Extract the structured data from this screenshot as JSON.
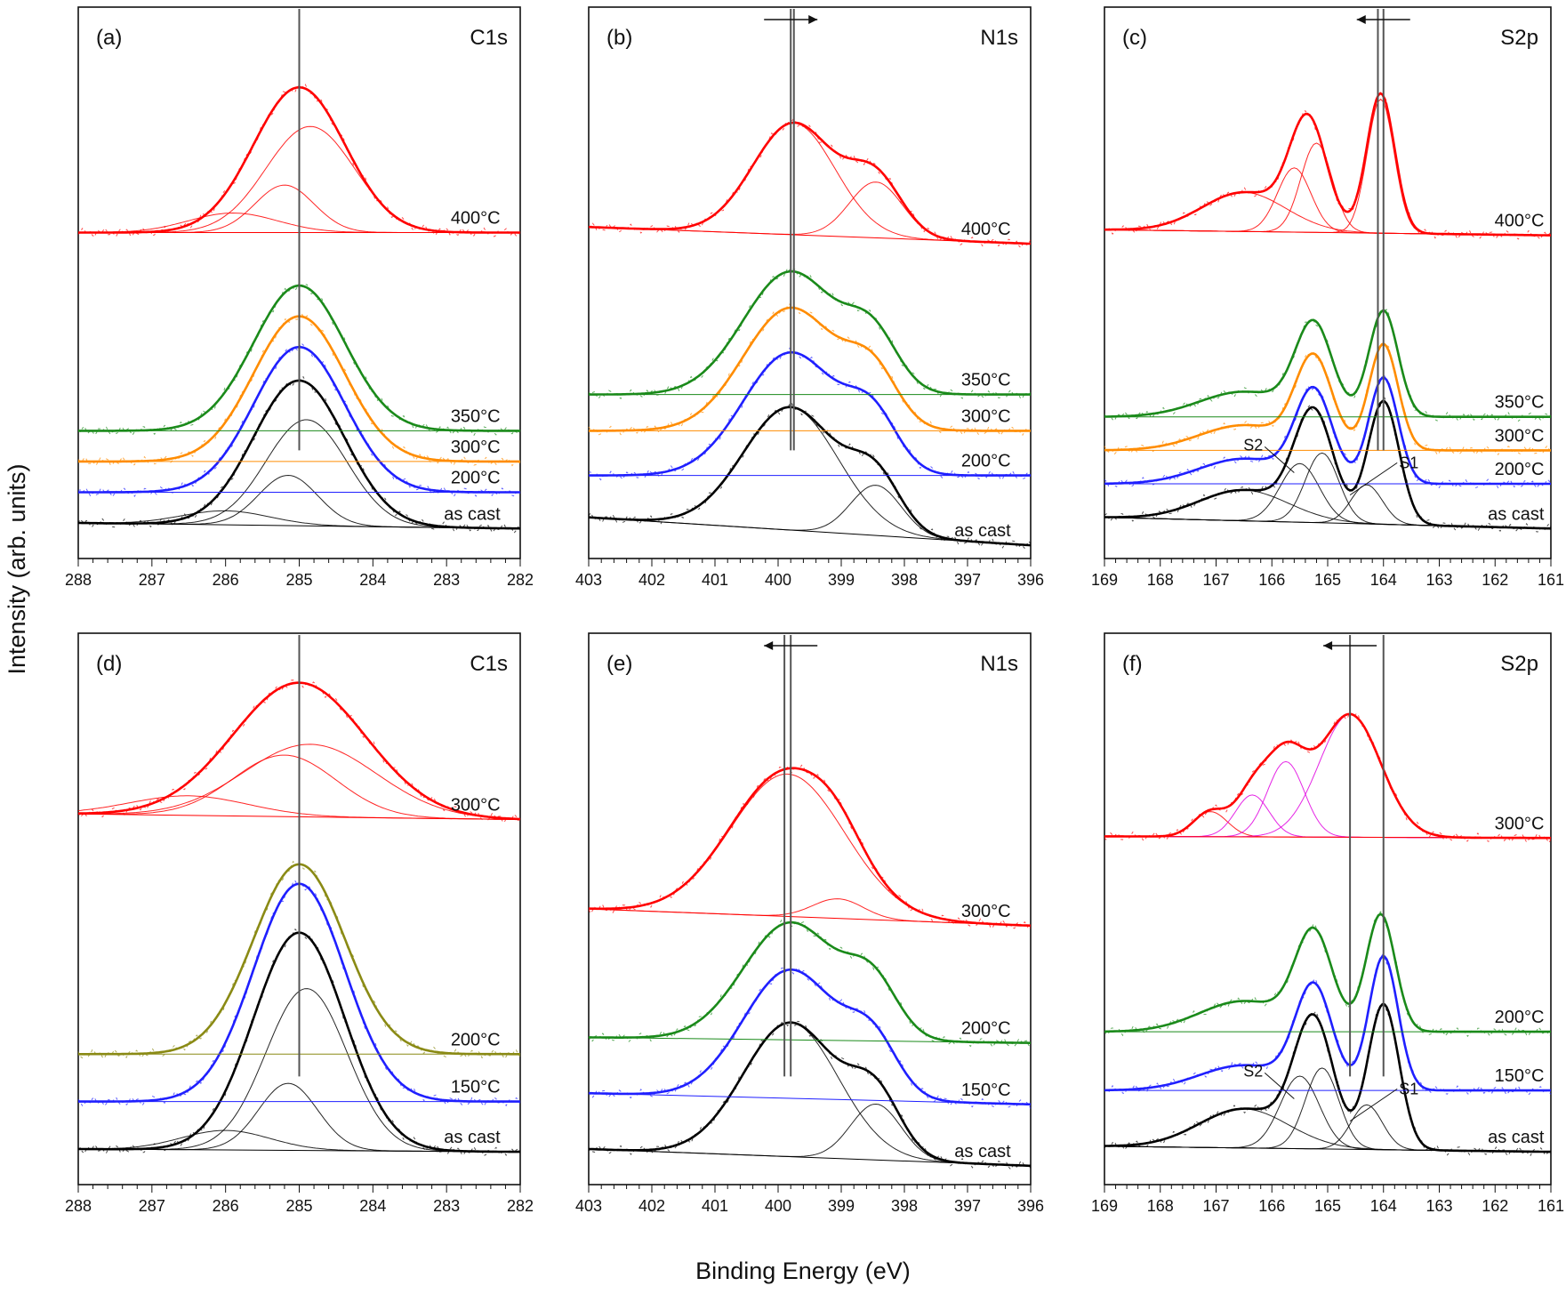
{
  "figure": {
    "ylabel": "Intensity (arb. units)",
    "xlabel": "Binding Energy (eV)"
  },
  "chart_data": [
    {
      "panel": "(a)",
      "element": "C1s",
      "type": "line",
      "xlim": [
        288,
        282
      ],
      "x_ticks": [
        288,
        287,
        286,
        285,
        284,
        283,
        282
      ],
      "ylim": [
        0,
        8.6
      ],
      "reference_line_eV": [
        285.0
      ],
      "series": [
        {
          "name": "as cast",
          "color": "#000000",
          "offset": 0.0,
          "peaks": [
            [
              285.0,
              2.6,
              0.62
            ]
          ],
          "bg": [
            0.0,
            -0.1
          ]
        },
        {
          "name": "200°C",
          "color": "#1f1fff",
          "offset": 0.55,
          "peaks": [
            [
              285.0,
              2.6,
              0.62
            ]
          ],
          "bg": [
            0.0,
            0.0
          ]
        },
        {
          "name": "300°C",
          "color": "#ff8c00",
          "offset": 1.1,
          "peaks": [
            [
              285.0,
              2.6,
              0.62
            ]
          ],
          "bg": [
            0.0,
            0.0
          ]
        },
        {
          "name": "350°C",
          "color": "#1a8a1a",
          "offset": 1.65,
          "peaks": [
            [
              285.0,
              2.6,
              0.62
            ]
          ],
          "bg": [
            0.0,
            0.0
          ]
        },
        {
          "name": "400°C",
          "color": "#ff0000",
          "offset": 5.2,
          "peaks": [
            [
              285.0,
              2.6,
              0.62
            ]
          ],
          "bg": [
            0.0,
            0.0
          ]
        }
      ],
      "components": [
        {
          "of": "as cast",
          "center": 284.9,
          "height": 1.9,
          "width": 0.55
        },
        {
          "of": "as cast",
          "center": 285.15,
          "height": 0.9,
          "width": 0.4
        },
        {
          "of": "as cast",
          "center": 286.0,
          "height": 0.25,
          "width": 0.6
        },
        {
          "of": "400°C",
          "center": 284.85,
          "height": 1.9,
          "width": 0.6
        },
        {
          "of": "400°C",
          "center": 285.2,
          "height": 0.85,
          "width": 0.4
        },
        {
          "of": "400°C",
          "center": 285.9,
          "height": 0.35,
          "width": 0.6
        }
      ],
      "curve_labels": [
        "400°C",
        "350°C",
        "300°C",
        "200°C",
        "as cast"
      ]
    },
    {
      "panel": "(b)",
      "element": "N1s",
      "type": "line",
      "xlim": [
        403,
        396
      ],
      "x_ticks": [
        403,
        402,
        401,
        400,
        399,
        398,
        397,
        396
      ],
      "ylim": [
        0,
        8.6
      ],
      "reference_line_eV": [
        399.8,
        399.75
      ],
      "shift_arrow": "right",
      "series": [
        {
          "name": "as cast",
          "color": "#000000",
          "offset": 0.0,
          "peaks": [
            [
              399.8,
              2.2,
              0.75
            ],
            [
              398.45,
              0.9,
              0.4
            ]
          ],
          "bg": [
            0.1,
            -0.4
          ]
        },
        {
          "name": "200°C",
          "color": "#1f1fff",
          "offset": 0.85,
          "peaks": [
            [
              399.8,
              2.2,
              0.75
            ],
            [
              398.5,
              0.9,
              0.4
            ]
          ],
          "bg": [
            0.0,
            0.0
          ]
        },
        {
          "name": "300°C",
          "color": "#ff8c00",
          "offset": 1.65,
          "peaks": [
            [
              399.8,
              2.2,
              0.75
            ],
            [
              398.5,
              0.9,
              0.4
            ]
          ],
          "bg": [
            0.0,
            0.0
          ]
        },
        {
          "name": "350°C",
          "color": "#1a8a1a",
          "offset": 2.3,
          "peaks": [
            [
              399.8,
              2.2,
              0.75
            ],
            [
              398.5,
              0.9,
              0.4
            ]
          ],
          "bg": [
            0.0,
            0.0
          ]
        },
        {
          "name": "400°C",
          "color": "#ff0000",
          "offset": 5.0,
          "peaks": [
            [
              399.75,
              2.0,
              0.65
            ],
            [
              398.45,
              1.0,
              0.42
            ]
          ],
          "bg": [
            0.3,
            0.0
          ]
        }
      ],
      "components": [
        {
          "of": "as cast",
          "center": 399.8,
          "height": 2.2,
          "width": 0.75
        },
        {
          "of": "as cast",
          "center": 398.45,
          "height": 0.9,
          "width": 0.4
        },
        {
          "of": "400°C",
          "center": 399.75,
          "height": 2.0,
          "width": 0.65
        },
        {
          "of": "400°C",
          "center": 398.45,
          "height": 1.0,
          "width": 0.42
        }
      ],
      "curve_labels": [
        "400°C",
        "350°C",
        "300°C",
        "200°C",
        "as cast"
      ]
    },
    {
      "panel": "(c)",
      "element": "S2p",
      "type": "line",
      "xlim": [
        169,
        161
      ],
      "x_ticks": [
        169,
        168,
        167,
        166,
        165,
        164,
        163,
        162,
        161
      ],
      "ylim": [
        0,
        8.6
      ],
      "reference_line_eV": [
        164.0,
        164.1
      ],
      "shift_arrow": "left",
      "series": [
        {
          "name": "as cast",
          "color": "#000000",
          "offset": 0.0,
          "peaks": [
            [
              166.5,
              0.55,
              0.8
            ],
            [
              165.25,
              1.9,
              0.35
            ],
            [
              164.0,
              2.2,
              0.28
            ]
          ],
          "bg": [
            0.1,
            -0.1
          ]
        },
        {
          "name": "200°C",
          "color": "#1f1fff",
          "offset": 0.7,
          "peaks": [
            [
              166.5,
              0.45,
              0.8
            ],
            [
              165.25,
              1.6,
              0.33
            ],
            [
              164.0,
              1.9,
              0.26
            ]
          ],
          "bg": [
            0.0,
            0.0
          ]
        },
        {
          "name": "300°C",
          "color": "#ff8c00",
          "offset": 1.3,
          "peaks": [
            [
              166.5,
              0.45,
              0.8
            ],
            [
              165.25,
              1.6,
              0.33
            ],
            [
              164.0,
              1.9,
              0.26
            ]
          ],
          "bg": [
            0.0,
            0.0
          ]
        },
        {
          "name": "350°C",
          "color": "#1a8a1a",
          "offset": 1.9,
          "peaks": [
            [
              166.5,
              0.45,
              0.8
            ],
            [
              165.25,
              1.6,
              0.33
            ],
            [
              164.0,
              1.9,
              0.26
            ]
          ],
          "bg": [
            0.0,
            0.0
          ]
        },
        {
          "name": "400°C",
          "color": "#ff0000",
          "offset": 5.2,
          "peaks": [
            [
              166.5,
              0.7,
              0.75
            ],
            [
              165.35,
              1.9,
              0.33
            ],
            [
              164.05,
              2.5,
              0.25
            ]
          ],
          "bg": [
            0.05,
            -0.05
          ]
        }
      ],
      "components": [
        {
          "of": "as cast",
          "center": 166.5,
          "height": 0.55,
          "width": 0.8
        },
        {
          "of": "as cast",
          "center": 165.5,
          "height": 1.05,
          "width": 0.35
        },
        {
          "of": "as cast",
          "center": 165.1,
          "height": 1.25,
          "width": 0.3
        },
        {
          "of": "as cast",
          "center": 164.3,
          "height": 0.7,
          "width": 0.28
        },
        {
          "of": "400°C",
          "center": 166.5,
          "height": 0.7,
          "width": 0.75
        },
        {
          "of": "400°C",
          "center": 165.6,
          "height": 1.15,
          "width": 0.3
        },
        {
          "of": "400°C",
          "center": 165.2,
          "height": 1.6,
          "width": 0.28
        },
        {
          "of": "400°C",
          "center": 164.05,
          "height": 2.4,
          "width": 0.24
        }
      ],
      "curve_labels": [
        "400°C",
        "350°C",
        "300°C",
        "200°C",
        "as cast"
      ],
      "annotations": [
        "S2",
        "S1"
      ]
    },
    {
      "panel": "(d)",
      "element": "C1s",
      "type": "line",
      "xlim": [
        288,
        282
      ],
      "x_ticks": [
        288,
        287,
        286,
        285,
        284,
        283,
        282
      ],
      "ylim": [
        0,
        8.6
      ],
      "reference_line_eV": [
        285.0
      ],
      "series": [
        {
          "name": "as cast",
          "color": "#000000",
          "offset": 0.0,
          "peaks": [
            [
              285.0,
              3.9,
              0.62
            ]
          ],
          "bg": [
            0.0,
            -0.05
          ]
        },
        {
          "name": "150°C",
          "color": "#1f1fff",
          "offset": 0.85,
          "peaks": [
            [
              285.0,
              3.9,
              0.62
            ]
          ],
          "bg": [
            0.0,
            0.0
          ]
        },
        {
          "name": "200°C",
          "color": "#8a8a14",
          "offset": 1.7,
          "peaks": [
            [
              285.0,
              3.4,
              0.62
            ]
          ],
          "bg": [
            0.0,
            0.0
          ]
        },
        {
          "name": "300°C",
          "color": "#ff0000",
          "offset": 6.0,
          "peaks": [
            [
              285.0,
              2.4,
              0.9
            ]
          ],
          "bg": [
            0.0,
            -0.1
          ]
        }
      ],
      "components": [
        {
          "of": "as cast",
          "center": 284.9,
          "height": 2.9,
          "width": 0.55
        },
        {
          "of": "as cast",
          "center": 285.15,
          "height": 1.2,
          "width": 0.4
        },
        {
          "of": "as cast",
          "center": 286.0,
          "height": 0.35,
          "width": 0.6
        },
        {
          "of": "300°C",
          "center": 284.85,
          "height": 1.3,
          "width": 0.9
        },
        {
          "of": "300°C",
          "center": 285.2,
          "height": 1.1,
          "width": 0.7
        },
        {
          "of": "300°C",
          "center": 286.5,
          "height": 0.35,
          "width": 0.8
        }
      ],
      "curve_labels": [
        "300°C",
        "200°C",
        "150°C",
        "as cast"
      ]
    },
    {
      "panel": "(e)",
      "element": "N1s",
      "type": "line",
      "xlim": [
        403,
        396
      ],
      "x_ticks": [
        403,
        402,
        401,
        400,
        399,
        398,
        397,
        396
      ],
      "ylim": [
        0,
        8.6
      ],
      "reference_line_eV": [
        399.8,
        399.9
      ],
      "shift_arrow": "left",
      "series": [
        {
          "name": "as cast",
          "color": "#000000",
          "offset": 0.0,
          "peaks": [
            [
              399.8,
              2.4,
              0.75
            ],
            [
              398.45,
              1.0,
              0.4
            ]
          ],
          "bg": [
            0.0,
            -0.3
          ]
        },
        {
          "name": "150°C",
          "color": "#1f1fff",
          "offset": 1.0,
          "peaks": [
            [
              399.8,
              2.3,
              0.75
            ],
            [
              398.5,
              0.9,
              0.4
            ]
          ],
          "bg": [
            0.0,
            -0.2
          ]
        },
        {
          "name": "200°C",
          "color": "#1a8a1a",
          "offset": 2.0,
          "peaks": [
            [
              399.8,
              2.1,
              0.75
            ],
            [
              398.5,
              0.9,
              0.4
            ]
          ],
          "bg": [
            0.0,
            -0.1
          ]
        },
        {
          "name": "300°C",
          "color": "#ff0000",
          "offset": 4.3,
          "peaks": [
            [
              399.85,
              2.6,
              0.9
            ],
            [
              399.05,
              0.35,
              0.4
            ]
          ],
          "bg": [
            0.0,
            -0.3
          ]
        }
      ],
      "components": [
        {
          "of": "as cast",
          "center": 399.8,
          "height": 2.4,
          "width": 0.75
        },
        {
          "of": "as cast",
          "center": 398.45,
          "height": 1.0,
          "width": 0.4
        },
        {
          "of": "300°C",
          "center": 399.85,
          "height": 2.55,
          "width": 0.9
        },
        {
          "of": "300°C",
          "center": 399.05,
          "height": 0.35,
          "width": 0.4
        }
      ],
      "curve_labels": [
        "300°C",
        "200°C",
        "150°C",
        "as cast"
      ]
    },
    {
      "panel": "(f)",
      "element": "S2p",
      "type": "line",
      "xlim": [
        169,
        161
      ],
      "x_ticks": [
        169,
        168,
        167,
        166,
        165,
        164,
        163,
        162,
        161
      ],
      "ylim": [
        0,
        8.6
      ],
      "reference_line_eV": [
        164.6,
        164.0
      ],
      "shift_arrow": "left",
      "series": [
        {
          "name": "as cast",
          "color": "#000000",
          "offset": 0.0,
          "peaks": [
            [
              166.5,
              0.7,
              0.8
            ],
            [
              165.25,
              2.2,
              0.35
            ],
            [
              164.0,
              2.6,
              0.28
            ]
          ],
          "bg": [
            0.05,
            -0.05
          ]
        },
        {
          "name": "150°C",
          "color": "#1f1fff",
          "offset": 1.05,
          "peaks": [
            [
              166.5,
              0.45,
              0.8
            ],
            [
              165.25,
              1.8,
              0.33
            ],
            [
              164.0,
              2.4,
              0.26
            ]
          ],
          "bg": [
            0.0,
            0.0
          ]
        },
        {
          "name": "200°C",
          "color": "#1a8a1a",
          "offset": 2.1,
          "peaks": [
            [
              166.5,
              0.55,
              0.8
            ],
            [
              165.25,
              1.7,
              0.33
            ],
            [
              164.05,
              2.1,
              0.26
            ]
          ],
          "bg": [
            0.0,
            0.0
          ]
        },
        {
          "name": "300°C",
          "color": "#ff0000",
          "offset": 5.6,
          "peaks": [
            [
              167.1,
              0.45,
              0.3
            ],
            [
              166.35,
              0.75,
              0.3
            ],
            [
              165.75,
              1.35,
              0.35
            ],
            [
              164.6,
              2.2,
              0.55
            ]
          ],
          "bg": [
            0.0,
            -0.03
          ]
        }
      ],
      "components": [
        {
          "of": "as cast",
          "center": 166.5,
          "height": 0.7,
          "width": 0.8
        },
        {
          "of": "as cast",
          "center": 165.5,
          "height": 1.3,
          "width": 0.35
        },
        {
          "of": "as cast",
          "center": 165.1,
          "height": 1.45,
          "width": 0.3
        },
        {
          "of": "as cast",
          "center": 164.3,
          "height": 0.8,
          "width": 0.28
        },
        {
          "of": "300°C",
          "center": 167.1,
          "height": 0.45,
          "width": 0.3,
          "color": "#ff0000"
        },
        {
          "of": "300°C",
          "center": 166.35,
          "height": 0.75,
          "width": 0.3,
          "color": "#e000e0"
        },
        {
          "of": "300°C",
          "center": 165.75,
          "height": 1.35,
          "width": 0.33,
          "color": "#e000e0"
        },
        {
          "of": "300°C",
          "center": 164.6,
          "height": 2.2,
          "width": 0.55,
          "color": "#e000e0"
        }
      ],
      "curve_labels": [
        "300°C",
        "200°C",
        "150°C",
        "as cast"
      ],
      "annotations": [
        "S2",
        "S1"
      ]
    }
  ]
}
